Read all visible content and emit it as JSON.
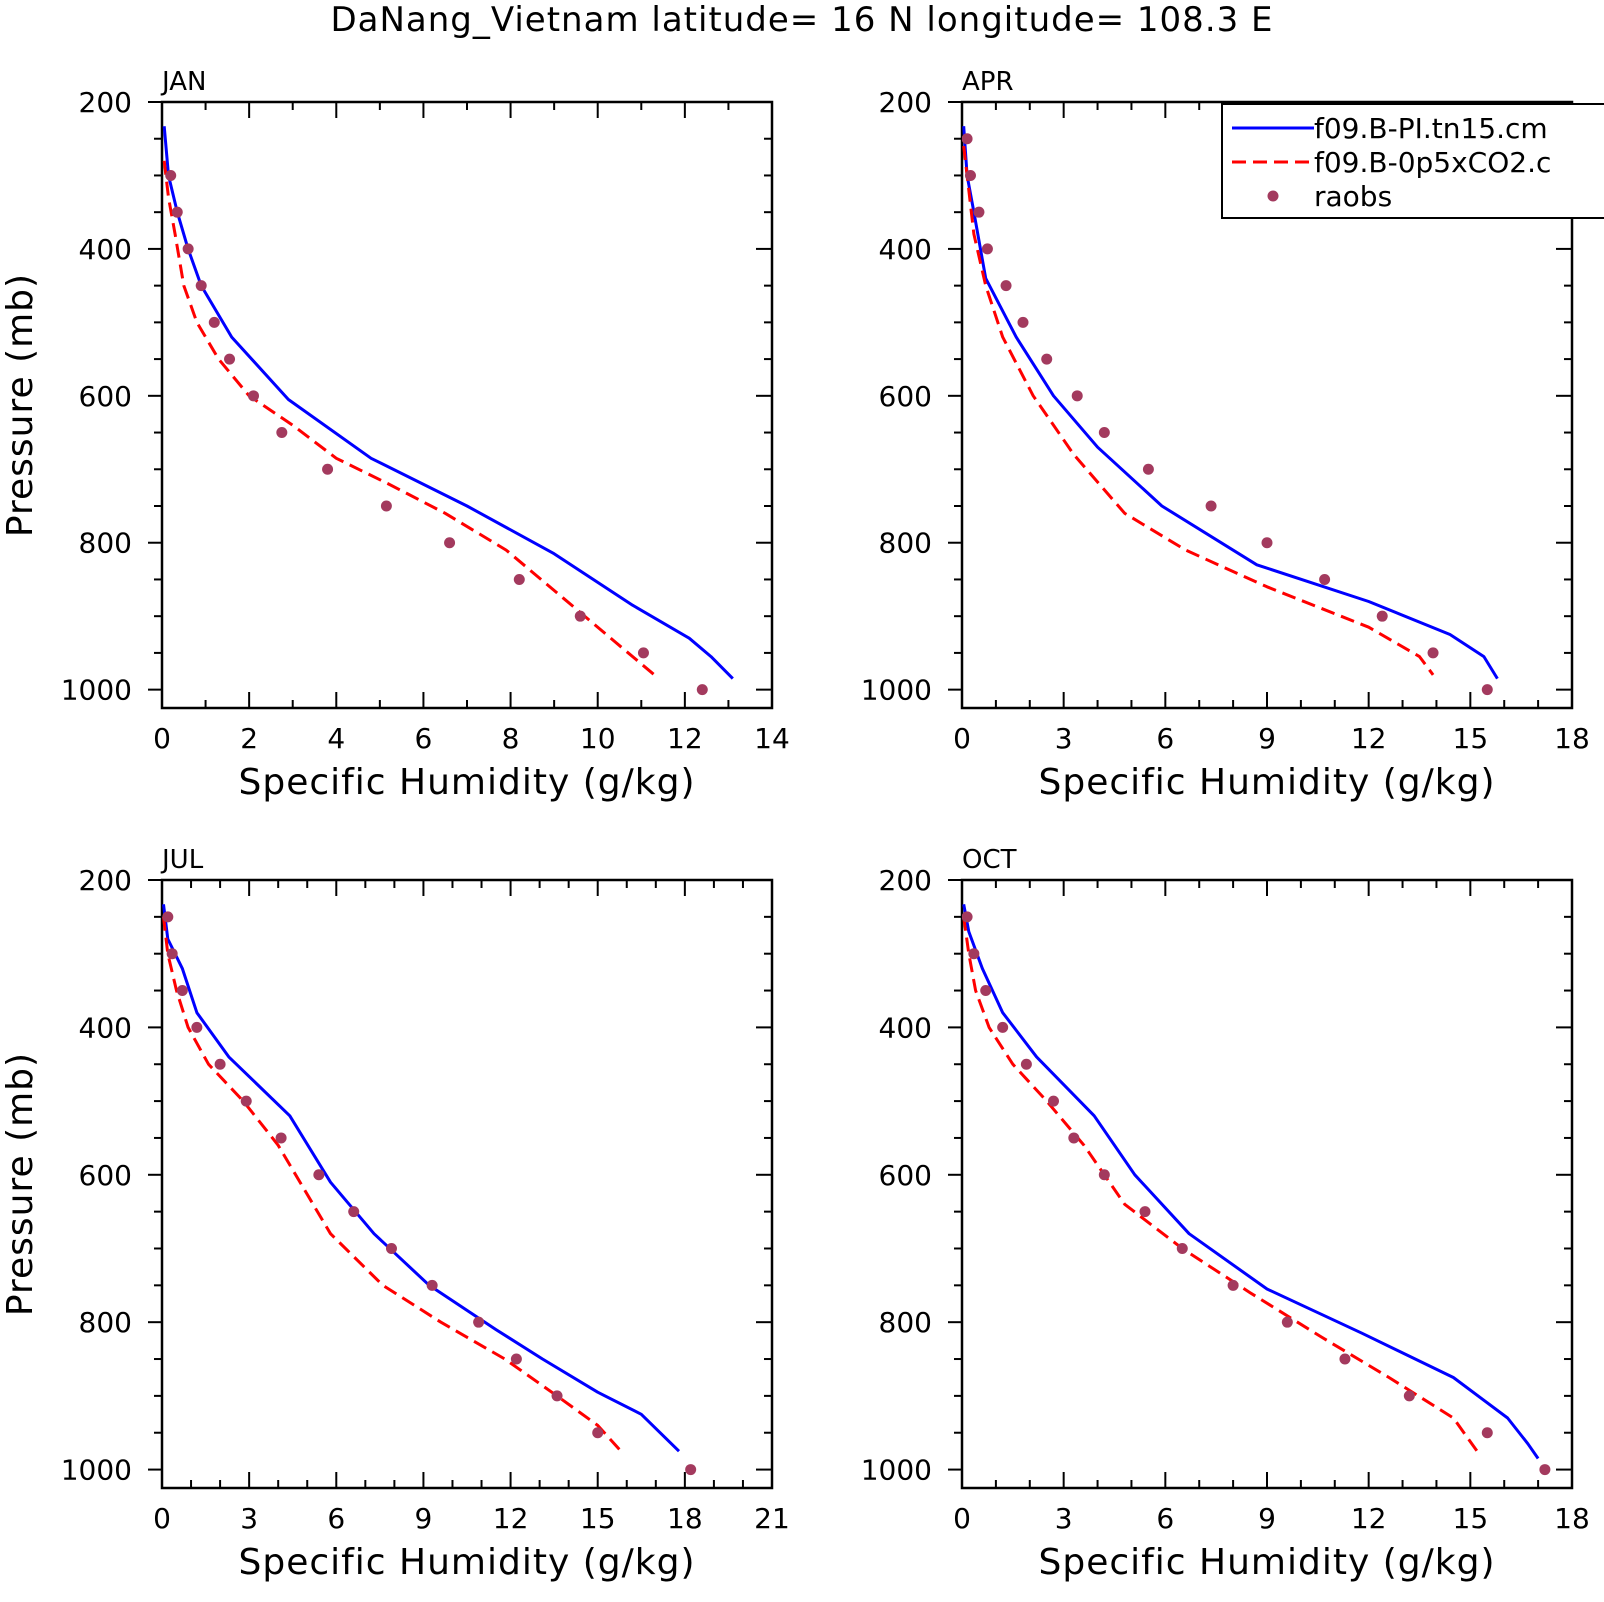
{
  "title": "DaNang_Vietnam  latitude= 16 N longitude= 108.3 E",
  "colors": {
    "model1": "#0000ff",
    "model2": "#ff0000",
    "obs": "#a33a5e",
    "axis": "#000000"
  },
  "legend": {
    "panel": 1,
    "entries": [
      {
        "label": "f09.B-PI.tn15.cm",
        "style": "solid",
        "color": "#0000ff"
      },
      {
        "label": "f09.B-0p5xCO2.c",
        "style": "dashed",
        "color": "#ff0000"
      },
      {
        "label": "raobs",
        "style": "marker",
        "color": "#a33a5e"
      }
    ]
  },
  "chart_data": [
    {
      "type": "line",
      "title": "JAN",
      "xlabel": "Specific Humidity (g/kg)",
      "ylabel": "Pressure (mb)",
      "xlim": [
        0,
        14
      ],
      "ylim": [
        200,
        1025
      ],
      "y_reversed": true,
      "xticks": [
        0,
        2,
        4,
        6,
        8,
        10,
        12,
        14
      ],
      "yticks": [
        200,
        400,
        600,
        800,
        1000
      ],
      "series": [
        {
          "name": "f09.B-PI.tn15.cm",
          "style": "solid",
          "x": [
            0.05,
            0.15,
            0.35,
            0.6,
            0.9,
            1.6,
            2.9,
            4.8,
            7.0,
            9.0,
            10.8,
            12.1,
            12.6,
            13.1
          ],
          "y": [
            233,
            300,
            350,
            400,
            450,
            520,
            605,
            685,
            750,
            815,
            885,
            930,
            955,
            985
          ]
        },
        {
          "name": "f09.B-0p5xCO2.c",
          "style": "dashed",
          "x": [
            0.05,
            0.15,
            0.3,
            0.5,
            0.8,
            1.3,
            2.0,
            3.0,
            4.0,
            5.2,
            6.5,
            7.9,
            9.2,
            10.4,
            11.3
          ],
          "y": [
            280,
            330,
            380,
            450,
            500,
            550,
            600,
            640,
            685,
            720,
            760,
            810,
            875,
            935,
            980
          ]
        },
        {
          "name": "raobs",
          "style": "marker",
          "x": [
            0.2,
            0.35,
            0.6,
            0.9,
            1.2,
            1.55,
            2.1,
            2.75,
            3.8,
            5.15,
            6.6,
            8.2,
            9.6,
            11.05,
            12.4
          ],
          "y": [
            300,
            350,
            400,
            450,
            500,
            550,
            600,
            650,
            700,
            750,
            800,
            850,
            900,
            950,
            1000
          ]
        }
      ]
    },
    {
      "type": "line",
      "title": "APR",
      "xlabel": "Specific Humidity (g/kg)",
      "ylabel": "",
      "xlim": [
        0,
        18
      ],
      "ylim": [
        200,
        1025
      ],
      "y_reversed": true,
      "xticks": [
        0,
        3,
        6,
        9,
        12,
        15,
        18
      ],
      "yticks": [
        200,
        400,
        600,
        800,
        1000
      ],
      "series": [
        {
          "name": "f09.B-PI.tn15.cm",
          "style": "solid",
          "x": [
            0.05,
            0.15,
            0.35,
            0.7,
            1.6,
            2.7,
            4.0,
            5.9,
            8.7,
            12.0,
            14.4,
            15.4,
            15.8
          ],
          "y": [
            233,
            300,
            350,
            440,
            520,
            600,
            670,
            750,
            830,
            880,
            925,
            955,
            985
          ]
        },
        {
          "name": "f09.B-0p5xCO2.c",
          "style": "dashed",
          "x": [
            0.05,
            0.2,
            0.35,
            0.7,
            1.2,
            2.1,
            3.3,
            4.8,
            6.6,
            9.0,
            12.0,
            13.5,
            13.9
          ],
          "y": [
            260,
            320,
            380,
            450,
            520,
            600,
            680,
            760,
            810,
            860,
            915,
            955,
            980
          ]
        },
        {
          "name": "raobs",
          "style": "marker",
          "x": [
            0.15,
            0.25,
            0.5,
            0.75,
            1.3,
            1.8,
            2.5,
            3.4,
            4.2,
            5.5,
            7.35,
            9.0,
            10.7,
            12.4,
            13.9,
            15.5
          ],
          "y": [
            250,
            300,
            350,
            400,
            450,
            500,
            550,
            600,
            650,
            700,
            750,
            800,
            850,
            900,
            950,
            1000
          ]
        }
      ]
    },
    {
      "type": "line",
      "title": "JUL",
      "xlabel": "Specific Humidity (g/kg)",
      "ylabel": "Pressure (mb)",
      "xlim": [
        0,
        21
      ],
      "ylim": [
        200,
        1025
      ],
      "y_reversed": true,
      "xticks": [
        0,
        3,
        6,
        9,
        12,
        15,
        18,
        21
      ],
      "yticks": [
        200,
        400,
        600,
        800,
        1000
      ],
      "series": [
        {
          "name": "f09.B-PI.tn15.cm",
          "style": "solid",
          "x": [
            0.05,
            0.2,
            0.7,
            1.2,
            2.3,
            4.4,
            5.8,
            7.3,
            9.2,
            11.5,
            13.1,
            15.0,
            16.5,
            17.8
          ],
          "y": [
            233,
            280,
            320,
            380,
            440,
            520,
            610,
            680,
            750,
            810,
            850,
            895,
            925,
            975
          ]
        },
        {
          "name": "f09.B-0p5xCO2.c",
          "style": "dashed",
          "x": [
            0.05,
            0.2,
            0.5,
            0.9,
            1.6,
            2.8,
            4.0,
            5.8,
            7.6,
            9.6,
            11.8,
            13.6,
            15.0,
            15.8
          ],
          "y": [
            250,
            300,
            350,
            400,
            450,
            500,
            560,
            680,
            750,
            800,
            850,
            900,
            940,
            975
          ]
        },
        {
          "name": "raobs",
          "style": "marker",
          "x": [
            0.2,
            0.35,
            0.7,
            1.2,
            2.0,
            2.9,
            4.1,
            5.4,
            6.6,
            7.9,
            9.3,
            10.9,
            12.2,
            13.6,
            15.0,
            18.2
          ],
          "y": [
            250,
            300,
            350,
            400,
            450,
            500,
            550,
            600,
            650,
            700,
            750,
            800,
            850,
            900,
            950,
            1000
          ]
        }
      ]
    },
    {
      "type": "line",
      "title": "OCT",
      "xlabel": "Specific Humidity (g/kg)",
      "ylabel": "",
      "xlim": [
        0,
        18
      ],
      "ylim": [
        200,
        1025
      ],
      "y_reversed": true,
      "xticks": [
        0,
        3,
        6,
        9,
        12,
        15,
        18
      ],
      "yticks": [
        200,
        400,
        600,
        800,
        1000
      ],
      "series": [
        {
          "name": "f09.B-PI.tn15.cm",
          "style": "solid",
          "x": [
            0.05,
            0.2,
            0.6,
            1.2,
            2.2,
            3.9,
            5.1,
            6.7,
            9.0,
            11.8,
            14.5,
            16.1,
            16.7,
            17.0
          ],
          "y": [
            233,
            270,
            320,
            380,
            440,
            520,
            600,
            680,
            755,
            815,
            875,
            930,
            965,
            985
          ]
        },
        {
          "name": "f09.B-0p5xCO2.c",
          "style": "dashed",
          "x": [
            0.05,
            0.2,
            0.4,
            0.8,
            1.5,
            2.5,
            3.6,
            4.8,
            6.5,
            8.5,
            10.6,
            12.6,
            14.5,
            15.2
          ],
          "y": [
            250,
            300,
            350,
            400,
            450,
            500,
            560,
            640,
            700,
            760,
            820,
            875,
            930,
            975
          ]
        },
        {
          "name": "raobs",
          "style": "marker",
          "x": [
            0.15,
            0.35,
            0.7,
            1.2,
            1.9,
            2.7,
            3.3,
            4.2,
            5.4,
            6.5,
            8.0,
            9.6,
            11.3,
            13.2,
            15.5,
            17.2
          ],
          "y": [
            250,
            300,
            350,
            400,
            450,
            500,
            550,
            600,
            650,
            700,
            750,
            800,
            850,
            900,
            950,
            1000
          ]
        }
      ]
    }
  ]
}
